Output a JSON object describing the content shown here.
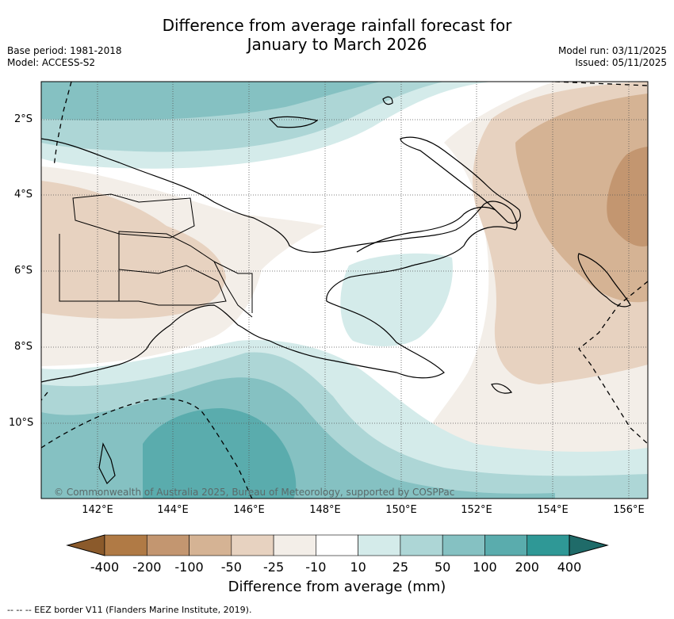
{
  "title_line1": "Difference from average rainfall forecast for",
  "title_line2": "January to March 2026",
  "base_period": "Base period: 1981-2018",
  "model": "Model: ACCESS-S2",
  "model_run": "Model run: 03/11/2025",
  "issued": "Issued: 05/11/2025",
  "lat_labels": [
    "2°S",
    "4°S",
    "6°S",
    "8°S",
    "10°S"
  ],
  "lon_labels": [
    "142°E",
    "144°E",
    "146°E",
    "148°E",
    "150°E",
    "152°E",
    "154°E",
    "156°E"
  ],
  "credit": "© Commonwealth of Australia 2025, Bureau of Meteorology, supported by COSPPac",
  "colorbar": {
    "ticks": [
      "-400",
      "-200",
      "-100",
      "-50",
      "-25",
      "-10",
      "10",
      "25",
      "50",
      "100",
      "200",
      "400"
    ],
    "colors": [
      "#8b5a2b",
      "#b07a45",
      "#c39670",
      "#d5b394",
      "#e7d2c0",
      "#f3eee8",
      "#ffffff",
      "#d4ebea",
      "#add6d6",
      "#85c1c2",
      "#5aacad",
      "#2f9896",
      "#1f6b69"
    ],
    "title": "Difference from average (mm)"
  },
  "eez_legend": "--  --  -- EEZ border V11 (Flanders Marine Institute, 2019)."
}
